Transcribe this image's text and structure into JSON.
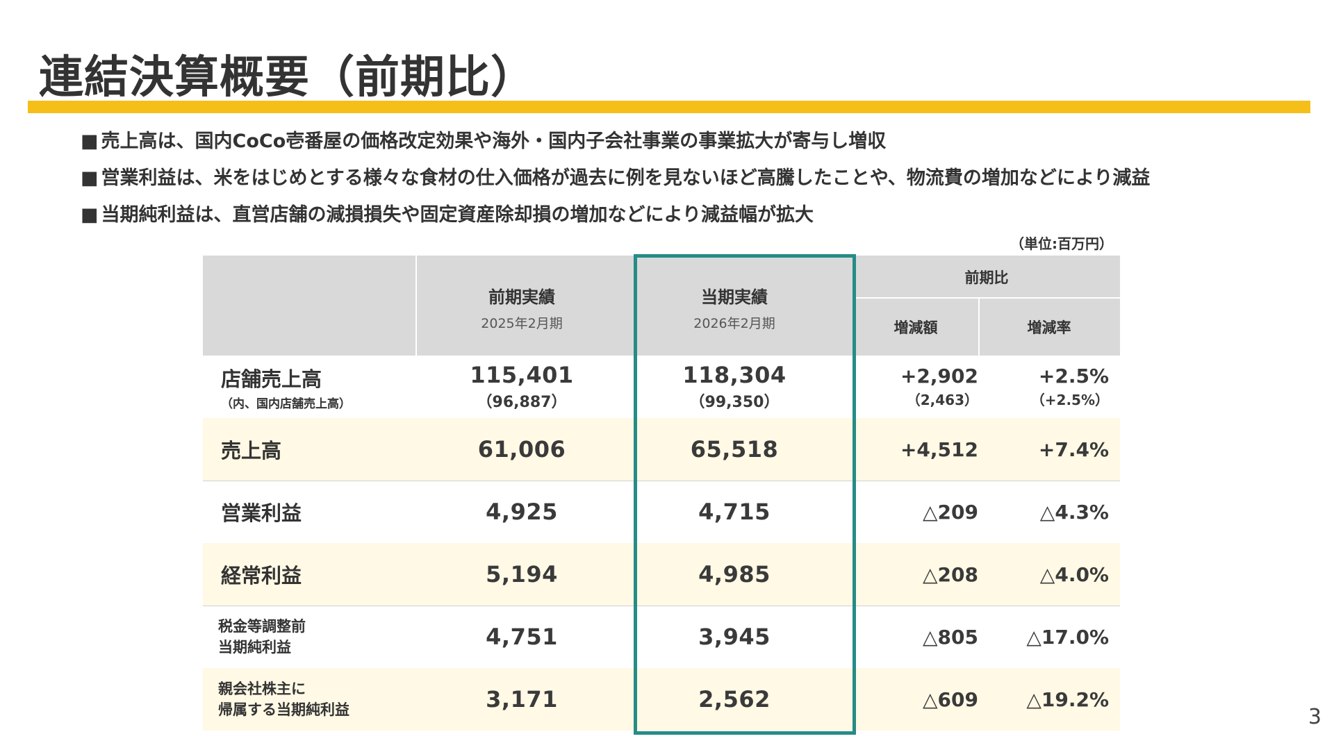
{
  "title": "連結決算概要（前期比）",
  "bullets": [
    "売上高は、国内CoCo壱番屋の価格改定効果や海外・国内子会社事業の事業拡大が寄与し増収",
    "営業利益は、米をはじめとする様々な食材の仕入価格が過去に例を見ないほど高騰したことや、物流費の増加などにより減益",
    "当期純利益は、直営店舗の減損損失や固定資産除却損の増加などにより減益幅が拡大"
  ],
  "bullet_mark": "■",
  "unit": "（単位:百万円）",
  "table": {
    "header": {
      "prev_title": "前期実績",
      "prev_period": "2025年2月期",
      "curr_title": "当期実績",
      "curr_period": "2026年2月期",
      "compare_title": "前期比",
      "diff_title": "増減額",
      "rate_title": "増減率"
    },
    "rows": [
      {
        "label": "店舗売上高",
        "note": "（内、国内店舗売上高）",
        "prev": "115,401",
        "prev_sub": "（96,887）",
        "curr": "118,304",
        "curr_sub": "（99,350）",
        "diff": "+2,902",
        "diff_sub": "（2,463）",
        "rate": "+2.5%",
        "rate_sub": "（+2.5%）"
      },
      {
        "label": "売上高",
        "prev": "61,006",
        "curr": "65,518",
        "diff": "+4,512",
        "rate": "+7.4%"
      },
      {
        "label": "営業利益",
        "prev": "4,925",
        "curr": "4,715",
        "diff": "△209",
        "rate": "△4.3%"
      },
      {
        "label": "経常利益",
        "prev": "5,194",
        "curr": "4,985",
        "diff": "△208",
        "rate": "△4.0%"
      },
      {
        "label_line1": "税金等調整前",
        "label_line2": "当期純利益",
        "prev": "4,751",
        "curr": "3,945",
        "diff": "△805",
        "rate": "△17.0%"
      },
      {
        "label_line1": "親会社株主に",
        "label_line2": "帰属する当期純利益",
        "prev": "3,171",
        "curr": "2,562",
        "diff": "△609",
        "rate": "△19.2%"
      }
    ]
  },
  "page_number": "3",
  "colors": {
    "accent_bar": "#f5be19",
    "highlight_border": "#268c86",
    "header_bg": "#d9d9d9",
    "row_tint": "#fff9e5"
  }
}
